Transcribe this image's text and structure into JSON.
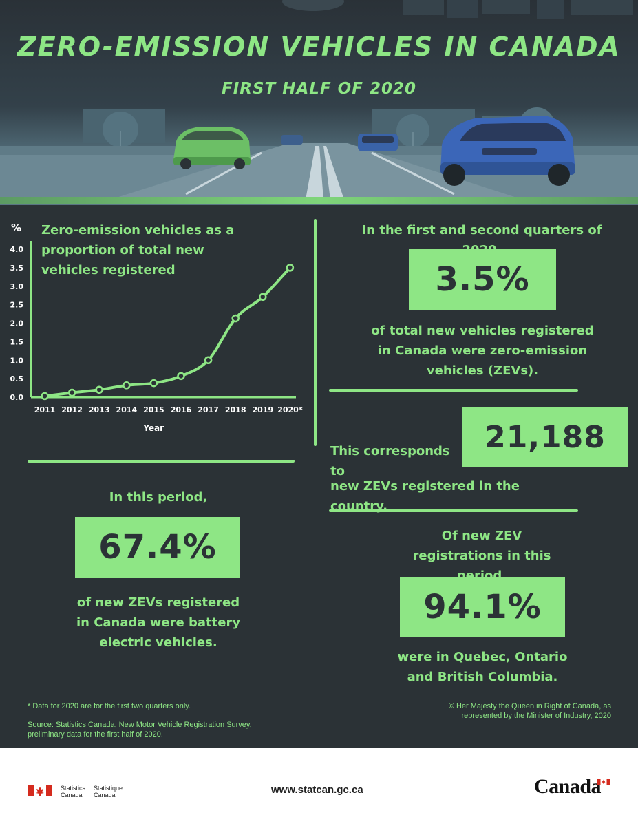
{
  "header": {
    "title": "ZERO-EMISSION VEHICLES IN CANADA",
    "subtitle": "FIRST HALF OF 2020"
  },
  "chart_data": {
    "type": "line",
    "title": "Zero-emission vehicles as a proportion of total new vehicles registered",
    "xlabel": "Year",
    "ylabel": "%",
    "categories": [
      "2011",
      "2012",
      "2013",
      "2014",
      "2015",
      "2016",
      "2017",
      "2018",
      "2019",
      "2020*"
    ],
    "values": [
      0.03,
      0.12,
      0.2,
      0.32,
      0.38,
      0.57,
      1.0,
      2.13,
      2.71,
      3.5
    ],
    "yticks": [
      "0.0",
      "0.5",
      "1.0",
      "1.5",
      "2.0",
      "2.5",
      "3.0",
      "3.5",
      "4.0"
    ],
    "ylim": [
      0,
      4
    ],
    "grid": false,
    "color": "#8ee685"
  },
  "stat_zev_share": {
    "intro": "In the first and second quarters of 2020,",
    "value": "3.5%",
    "description": "of total new vehicles registered in Canada were zero-emission vehicles (ZEVs)."
  },
  "stat_zev_count": {
    "intro": "This corresponds to",
    "value": "21,188",
    "description": "new ZEVs registered in the country."
  },
  "stat_bev": {
    "intro": "In this period,",
    "value": "67.4%",
    "description": "of new ZEVs registered in Canada were battery electric vehicles."
  },
  "stat_provinces": {
    "intro": "Of new ZEV registrations in this period,",
    "value": "94.1%",
    "description": "were in Quebec, Ontario and British Columbia."
  },
  "notes": {
    "data_note": "* Data for 2020 are for the first two quarters only.",
    "source": "Source: Statistics Canada, New Motor Vehicle Registration Survey, preliminary data for the first half of 2020.",
    "copyright": "© Her Majesty the Queen in Right of Canada, as represented by the Minister of Industry, 2020"
  },
  "footer": {
    "agency_en": "Statistics Canada",
    "agency_fr": "Statistique Canada",
    "url": "www.statcan.gc.ca",
    "wordmark": "Canada"
  },
  "colors": {
    "background": "#2b3236",
    "accent": "#8ee685",
    "text_dark": "#2b3236",
    "flag_red": "#d52b1e"
  }
}
